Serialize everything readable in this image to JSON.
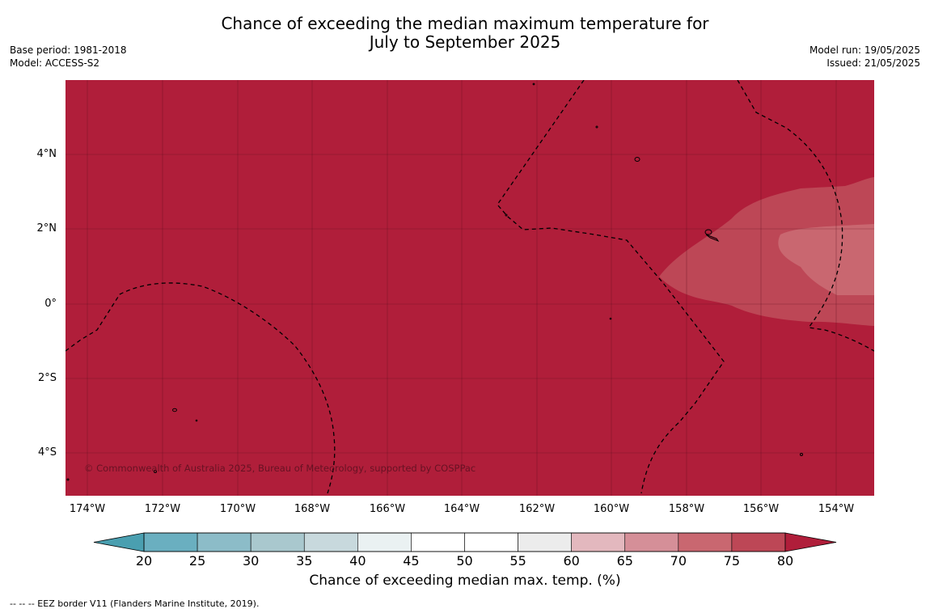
{
  "title_line1": "Chance of exceeding the median maximum temperature for",
  "title_line2": "July to September 2025",
  "meta_left": [
    "Base period: 1981-2018",
    "Model: ACCESS-S2"
  ],
  "meta_right": [
    "Model run: 19/05/2025",
    "Issued: 21/05/2025"
  ],
  "copyright": "© Commonwealth of Australia 2025, Bureau of Meteorology, supported by COSPPac",
  "lat_labels": [
    "4°N",
    "2°N",
    "0°",
    "2°S",
    "4°S"
  ],
  "lon_labels": [
    "174°W",
    "172°W",
    "170°W",
    "168°W",
    "166°W",
    "164°W",
    "162°W",
    "160°W",
    "158°W",
    "156°W",
    "154°W"
  ],
  "colorbar": {
    "title": "Chance of exceeding median max. temp. (%)",
    "ticks": [
      "20",
      "25",
      "30",
      "35",
      "40",
      "45",
      "50",
      "55",
      "60",
      "65",
      "70",
      "75",
      "80"
    ],
    "colors": [
      "#4a9fb0",
      "#6aafc0",
      "#8cbcc8",
      "#a9c8ce",
      "#c8d9dd",
      "#eaf1f2",
      "#ffffff",
      "#ffffff",
      "#ececec",
      "#e3b8be",
      "#d58f98",
      "#c96770",
      "#bd4756",
      "#b01e3a"
    ]
  },
  "map_colors": {
    "above_80": "#b01e3a",
    "band_75_80": "#bd4756",
    "band_70_75": "#c96770",
    "border": "#000000"
  },
  "footnote": "--  --  -- EEZ border V11 (Flanders Marine Institute, 2019)."
}
